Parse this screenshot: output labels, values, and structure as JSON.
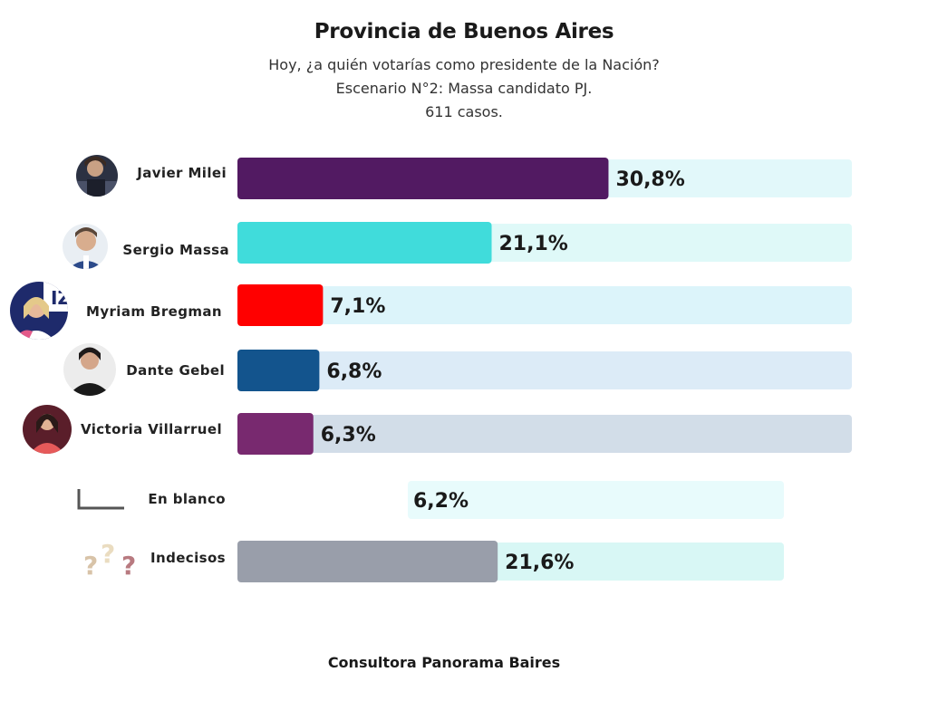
{
  "header": {
    "title": "Provincia de Buenos Aires",
    "subtitle_lines": [
      "Hoy, ¿a quién votarías como presidente de la Nación?",
      "Escenario N°2: Massa candidato PJ.",
      "611 casos."
    ]
  },
  "footer": "Consultora Panorama Baires",
  "chart_data": {
    "type": "bar",
    "orientation": "horizontal",
    "title": "Provincia de Buenos Aires",
    "xlim": [
      0,
      51
    ],
    "grid": false,
    "legend": "none",
    "categories": [
      "Javier Milei",
      "Sergio Massa",
      "Myriam Bregman",
      "Dante Gebel",
      "Victoria Villarruel",
      "En blanco",
      "Indecisos"
    ],
    "values": [
      30.8,
      21.1,
      7.1,
      6.8,
      6.3,
      6.2,
      21.6
    ],
    "value_labels": [
      "30,8%",
      "21,1%",
      "7,1%",
      "6,8%",
      "6,3%",
      "6,2%",
      "21,6%"
    ],
    "bar_colors": [
      "#521a62",
      "#40dcdb",
      "#ff0000",
      "#13548d",
      "#78296f",
      "#ffffff",
      "#999eaa"
    ],
    "track_colors": [
      "#e2f8fa",
      "#dff9f8",
      "#dcf4fa",
      "#dcebf7",
      "#d2dde8",
      "#e8fbfc",
      "#d8f7f5"
    ],
    "icons": [
      "photo-javier-milei",
      "photo-sergio-massa",
      "photo-myriam-bregman",
      "photo-dante-gebel",
      "photo-victoria-villarruel",
      "blank-ballot-icon",
      "question-marks-icon"
    ]
  }
}
